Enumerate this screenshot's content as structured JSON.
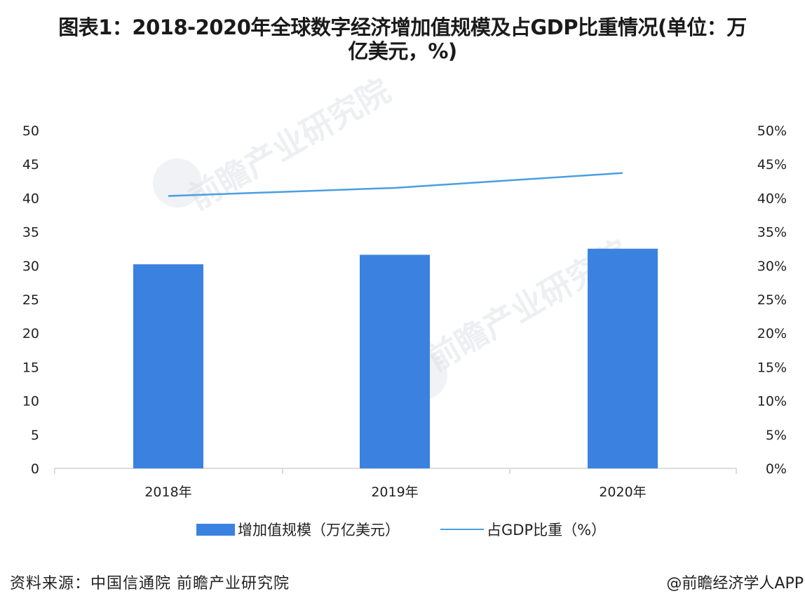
{
  "title": {
    "line1": "图表1：2018-2020年全球数字经济增加值规模及占GDP比重情况(单位：万",
    "line2": "亿美元，%)"
  },
  "watermark": {
    "text": "前瞻产业研究院"
  },
  "axes": {
    "left_ticks": [
      "0",
      "5",
      "10",
      "15",
      "20",
      "25",
      "30",
      "35",
      "40",
      "45",
      "50"
    ],
    "right_ticks": [
      "0%",
      "5%",
      "10%",
      "15%",
      "20%",
      "25%",
      "30%",
      "35%",
      "40%",
      "45%",
      "50%"
    ],
    "x_ticks": [
      "2018年",
      "2019年",
      "2020年"
    ]
  },
  "legend": {
    "bar_label": "增加值规模（万亿美元）",
    "line_label": "占GDP比重（%）"
  },
  "footer": {
    "source": "资料来源：中国信通院 前瞻产业研究院",
    "credit": "@前瞻经济学人APP"
  },
  "colors": {
    "bar": "#3b82e0",
    "line": "#4a9fe0",
    "axis": "#d0d0d0"
  },
  "chart_data": {
    "type": "bar",
    "title": "图表1：2018-2020年全球数字经济增加值规模及占GDP比重情况(单位：万亿美元，%)",
    "categories": [
      "2018年",
      "2019年",
      "2020年"
    ],
    "series": [
      {
        "name": "增加值规模（万亿美元）",
        "type": "bar",
        "axis": "left",
        "values": [
          30.2,
          31.6,
          32.5
        ]
      },
      {
        "name": "占GDP比重（%）",
        "type": "line",
        "axis": "right",
        "values": [
          40.3,
          41.5,
          43.7
        ]
      }
    ],
    "xlabel": "",
    "ylabel": "",
    "ylim": [
      0,
      50
    ],
    "y2lim": [
      0,
      50
    ],
    "y_ticks": [
      0,
      5,
      10,
      15,
      20,
      25,
      30,
      35,
      40,
      45,
      50
    ],
    "y2_ticks": [
      "0%",
      "5%",
      "10%",
      "15%",
      "20%",
      "25%",
      "30%",
      "35%",
      "40%",
      "45%",
      "50%"
    ],
    "grid": false,
    "legend_position": "bottom",
    "source": "资料来源：中国信通院 前瞻产业研究院"
  }
}
